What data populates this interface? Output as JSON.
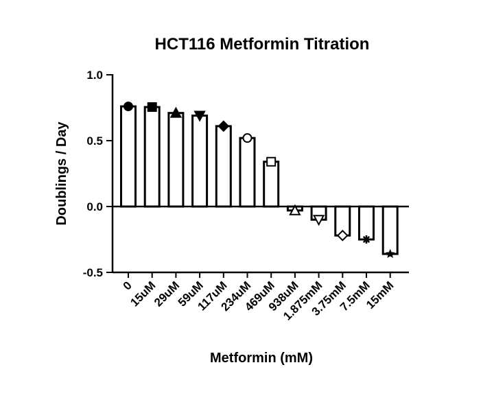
{
  "chart_data": {
    "type": "bar",
    "title": "HCT116 Metformin Titration",
    "xlabel": "Metformin (mM)",
    "ylabel": "Doublings / Day",
    "ylim": [
      -0.5,
      1.0
    ],
    "yticks": [
      "1.0",
      "0.5",
      "0.0",
      "-0.5"
    ],
    "grid": false,
    "categories": [
      "0",
      "15uM",
      "29uM",
      "59uM",
      "117uM",
      "234uM",
      "469uM",
      "938uM",
      "1.875mM",
      "3.75mM",
      "7.5mM",
      "15mM"
    ],
    "values": [
      0.76,
      0.755,
      0.71,
      0.69,
      0.61,
      0.52,
      0.34,
      -0.03,
      -0.1,
      -0.22,
      -0.25,
      -0.36
    ],
    "markers": [
      "circle",
      "square",
      "triangle-up",
      "triangle-down",
      "diamond",
      "open-circle",
      "open-square",
      "open-triangle-up",
      "open-triangle-down",
      "open-diamond",
      "asterisk",
      "star"
    ],
    "colors": {
      "bar_fill": "#ffffff",
      "bar_stroke": "#000000",
      "axis": "#000000"
    }
  }
}
